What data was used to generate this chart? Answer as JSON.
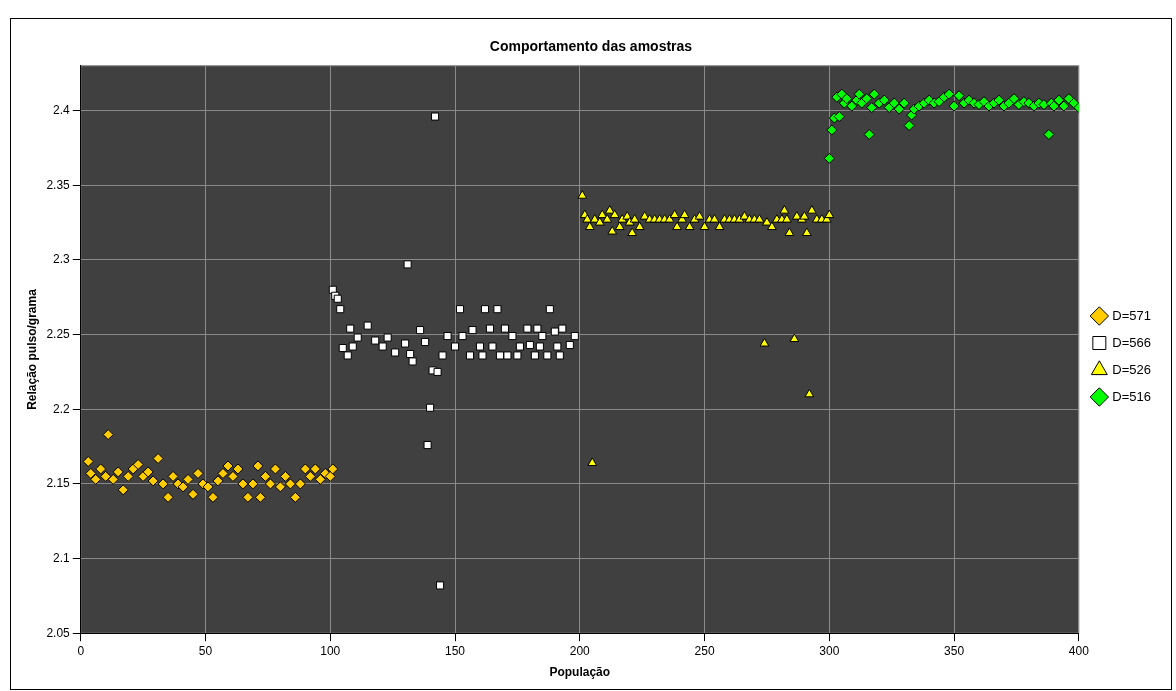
{
  "chart_data": {
    "type": "scatter",
    "title": "Comportamento das amostras",
    "xlabel": "População",
    "ylabel": "Relação pulso/grama",
    "xlim": [
      0,
      400
    ],
    "xticks": [
      0,
      50,
      100,
      150,
      200,
      250,
      300,
      350,
      400
    ],
    "ylim": [
      2.05,
      2.43
    ],
    "yticks": [
      2.05,
      2.1,
      2.15,
      2.2,
      2.25,
      2.3,
      2.35,
      2.4
    ],
    "grid": true,
    "legend": "right",
    "series": [
      {
        "name": "D=571",
        "color": "#ffcc00",
        "marker": "diamond",
        "x": [
          3,
          4,
          6,
          8,
          10,
          11,
          13,
          15,
          17,
          19,
          21,
          23,
          25,
          27,
          29,
          31,
          33,
          35,
          37,
          39,
          41,
          43,
          45,
          47,
          49,
          51,
          53,
          55,
          57,
          59,
          61,
          63,
          65,
          67,
          69,
          71,
          72,
          74,
          76,
          78,
          80,
          82,
          84,
          86,
          88,
          90,
          92,
          94,
          96,
          98,
          100,
          101
        ],
        "values": [
          2.165,
          2.157,
          2.153,
          2.16,
          2.155,
          2.183,
          2.153,
          2.158,
          2.146,
          2.155,
          2.16,
          2.163,
          2.155,
          2.158,
          2.152,
          2.167,
          2.15,
          2.141,
          2.155,
          2.15,
          2.148,
          2.153,
          2.143,
          2.157,
          2.15,
          2.148,
          2.141,
          2.152,
          2.157,
          2.162,
          2.155,
          2.16,
          2.15,
          2.141,
          2.15,
          2.162,
          2.141,
          2.155,
          2.15,
          2.16,
          2.148,
          2.155,
          2.15,
          2.141,
          2.15,
          2.16,
          2.155,
          2.16,
          2.153,
          2.157,
          2.155,
          2.16
        ]
      },
      {
        "name": "D=566",
        "color": "#ffffff",
        "marker": "square",
        "x": [
          101,
          102,
          103,
          104,
          105,
          107,
          108,
          109,
          111,
          115,
          118,
          121,
          123,
          126,
          130,
          131,
          132,
          133,
          136,
          138,
          139,
          140,
          141,
          142,
          143,
          144,
          145,
          147,
          150,
          152,
          153,
          157,
          156,
          160,
          161,
          162,
          164,
          165,
          167,
          168,
          170,
          171,
          173,
          175,
          176,
          179,
          180,
          182,
          183,
          184,
          185,
          187,
          188,
          190,
          191,
          192,
          193,
          196,
          198
        ],
        "values": [
          2.28,
          2.276,
          2.274,
          2.267,
          2.241,
          2.236,
          2.254,
          2.242,
          2.248,
          2.256,
          2.246,
          2.242,
          2.248,
          2.238,
          2.244,
          2.297,
          2.237,
          2.232,
          2.253,
          2.245,
          2.176,
          2.201,
          2.226,
          2.396,
          2.225,
          2.082,
          2.236,
          2.249,
          2.242,
          2.267,
          2.249,
          2.253,
          2.236,
          2.242,
          2.236,
          2.267,
          2.254,
          2.242,
          2.267,
          2.236,
          2.254,
          2.236,
          2.249,
          2.236,
          2.242,
          2.254,
          2.243,
          2.236,
          2.254,
          2.242,
          2.249,
          2.236,
          2.267,
          2.252,
          2.242,
          2.236,
          2.254,
          2.243,
          2.249
        ]
      },
      {
        "name": "D=526",
        "color": "#ffff00",
        "marker": "triangle",
        "x": [
          201,
          202,
          203,
          204,
          205,
          206,
          208,
          209,
          211,
          212,
          213,
          214,
          216,
          217,
          219,
          220,
          221,
          222,
          224,
          226,
          228,
          230,
          232,
          234,
          236,
          238,
          239,
          241,
          242,
          244,
          246,
          248,
          250,
          252,
          254,
          256,
          258,
          260,
          262,
          264,
          266,
          268,
          270,
          272,
          274,
          275,
          277,
          279,
          281,
          282,
          283,
          284,
          286,
          287,
          289,
          290,
          291,
          292,
          293,
          295,
          297,
          299,
          300
        ],
        "values": [
          2.343,
          2.33,
          2.327,
          2.322,
          2.164,
          2.327,
          2.325,
          2.33,
          2.327,
          2.333,
          2.319,
          2.33,
          2.322,
          2.327,
          2.329,
          2.325,
          2.318,
          2.327,
          2.322,
          2.329,
          2.327,
          2.327,
          2.327,
          2.327,
          2.327,
          2.33,
          2.322,
          2.327,
          2.33,
          2.322,
          2.327,
          2.329,
          2.322,
          2.327,
          2.327,
          2.322,
          2.327,
          2.327,
          2.327,
          2.327,
          2.329,
          2.327,
          2.327,
          2.327,
          2.244,
          2.325,
          2.322,
          2.327,
          2.327,
          2.333,
          2.327,
          2.318,
          2.247,
          2.329,
          2.327,
          2.329,
          2.318,
          2.21,
          2.333,
          2.327,
          2.327,
          2.327,
          2.33
        ]
      },
      {
        "name": "D=516",
        "color": "#00ff00",
        "marker": "diamond",
        "x": [
          300,
          301,
          302,
          303,
          304,
          305,
          306,
          307,
          309,
          311,
          312,
          313,
          315,
          316,
          317,
          318,
          320,
          322,
          324,
          326,
          328,
          330,
          332,
          333,
          334,
          336,
          338,
          340,
          342,
          344,
          346,
          348,
          350,
          352,
          354,
          356,
          358,
          360,
          362,
          364,
          366,
          368,
          370,
          372,
          374,
          376,
          378,
          380,
          382,
          384,
          386,
          388,
          389,
          390,
          392,
          394,
          396,
          398,
          400
        ],
        "values": [
          2.368,
          2.387,
          2.395,
          2.409,
          2.396,
          2.411,
          2.405,
          2.408,
          2.403,
          2.407,
          2.411,
          2.405,
          2.408,
          2.384,
          2.402,
          2.411,
          2.405,
          2.407,
          2.402,
          2.405,
          2.401,
          2.405,
          2.39,
          2.397,
          2.401,
          2.403,
          2.405,
          2.407,
          2.405,
          2.406,
          2.409,
          2.411,
          2.403,
          2.41,
          2.405,
          2.407,
          2.405,
          2.404,
          2.406,
          2.403,
          2.405,
          2.407,
          2.403,
          2.405,
          2.408,
          2.404,
          2.406,
          2.405,
          2.403,
          2.405,
          2.404,
          2.384,
          2.405,
          2.403,
          2.407,
          2.403,
          2.408,
          2.405,
          2.402
        ]
      }
    ]
  }
}
